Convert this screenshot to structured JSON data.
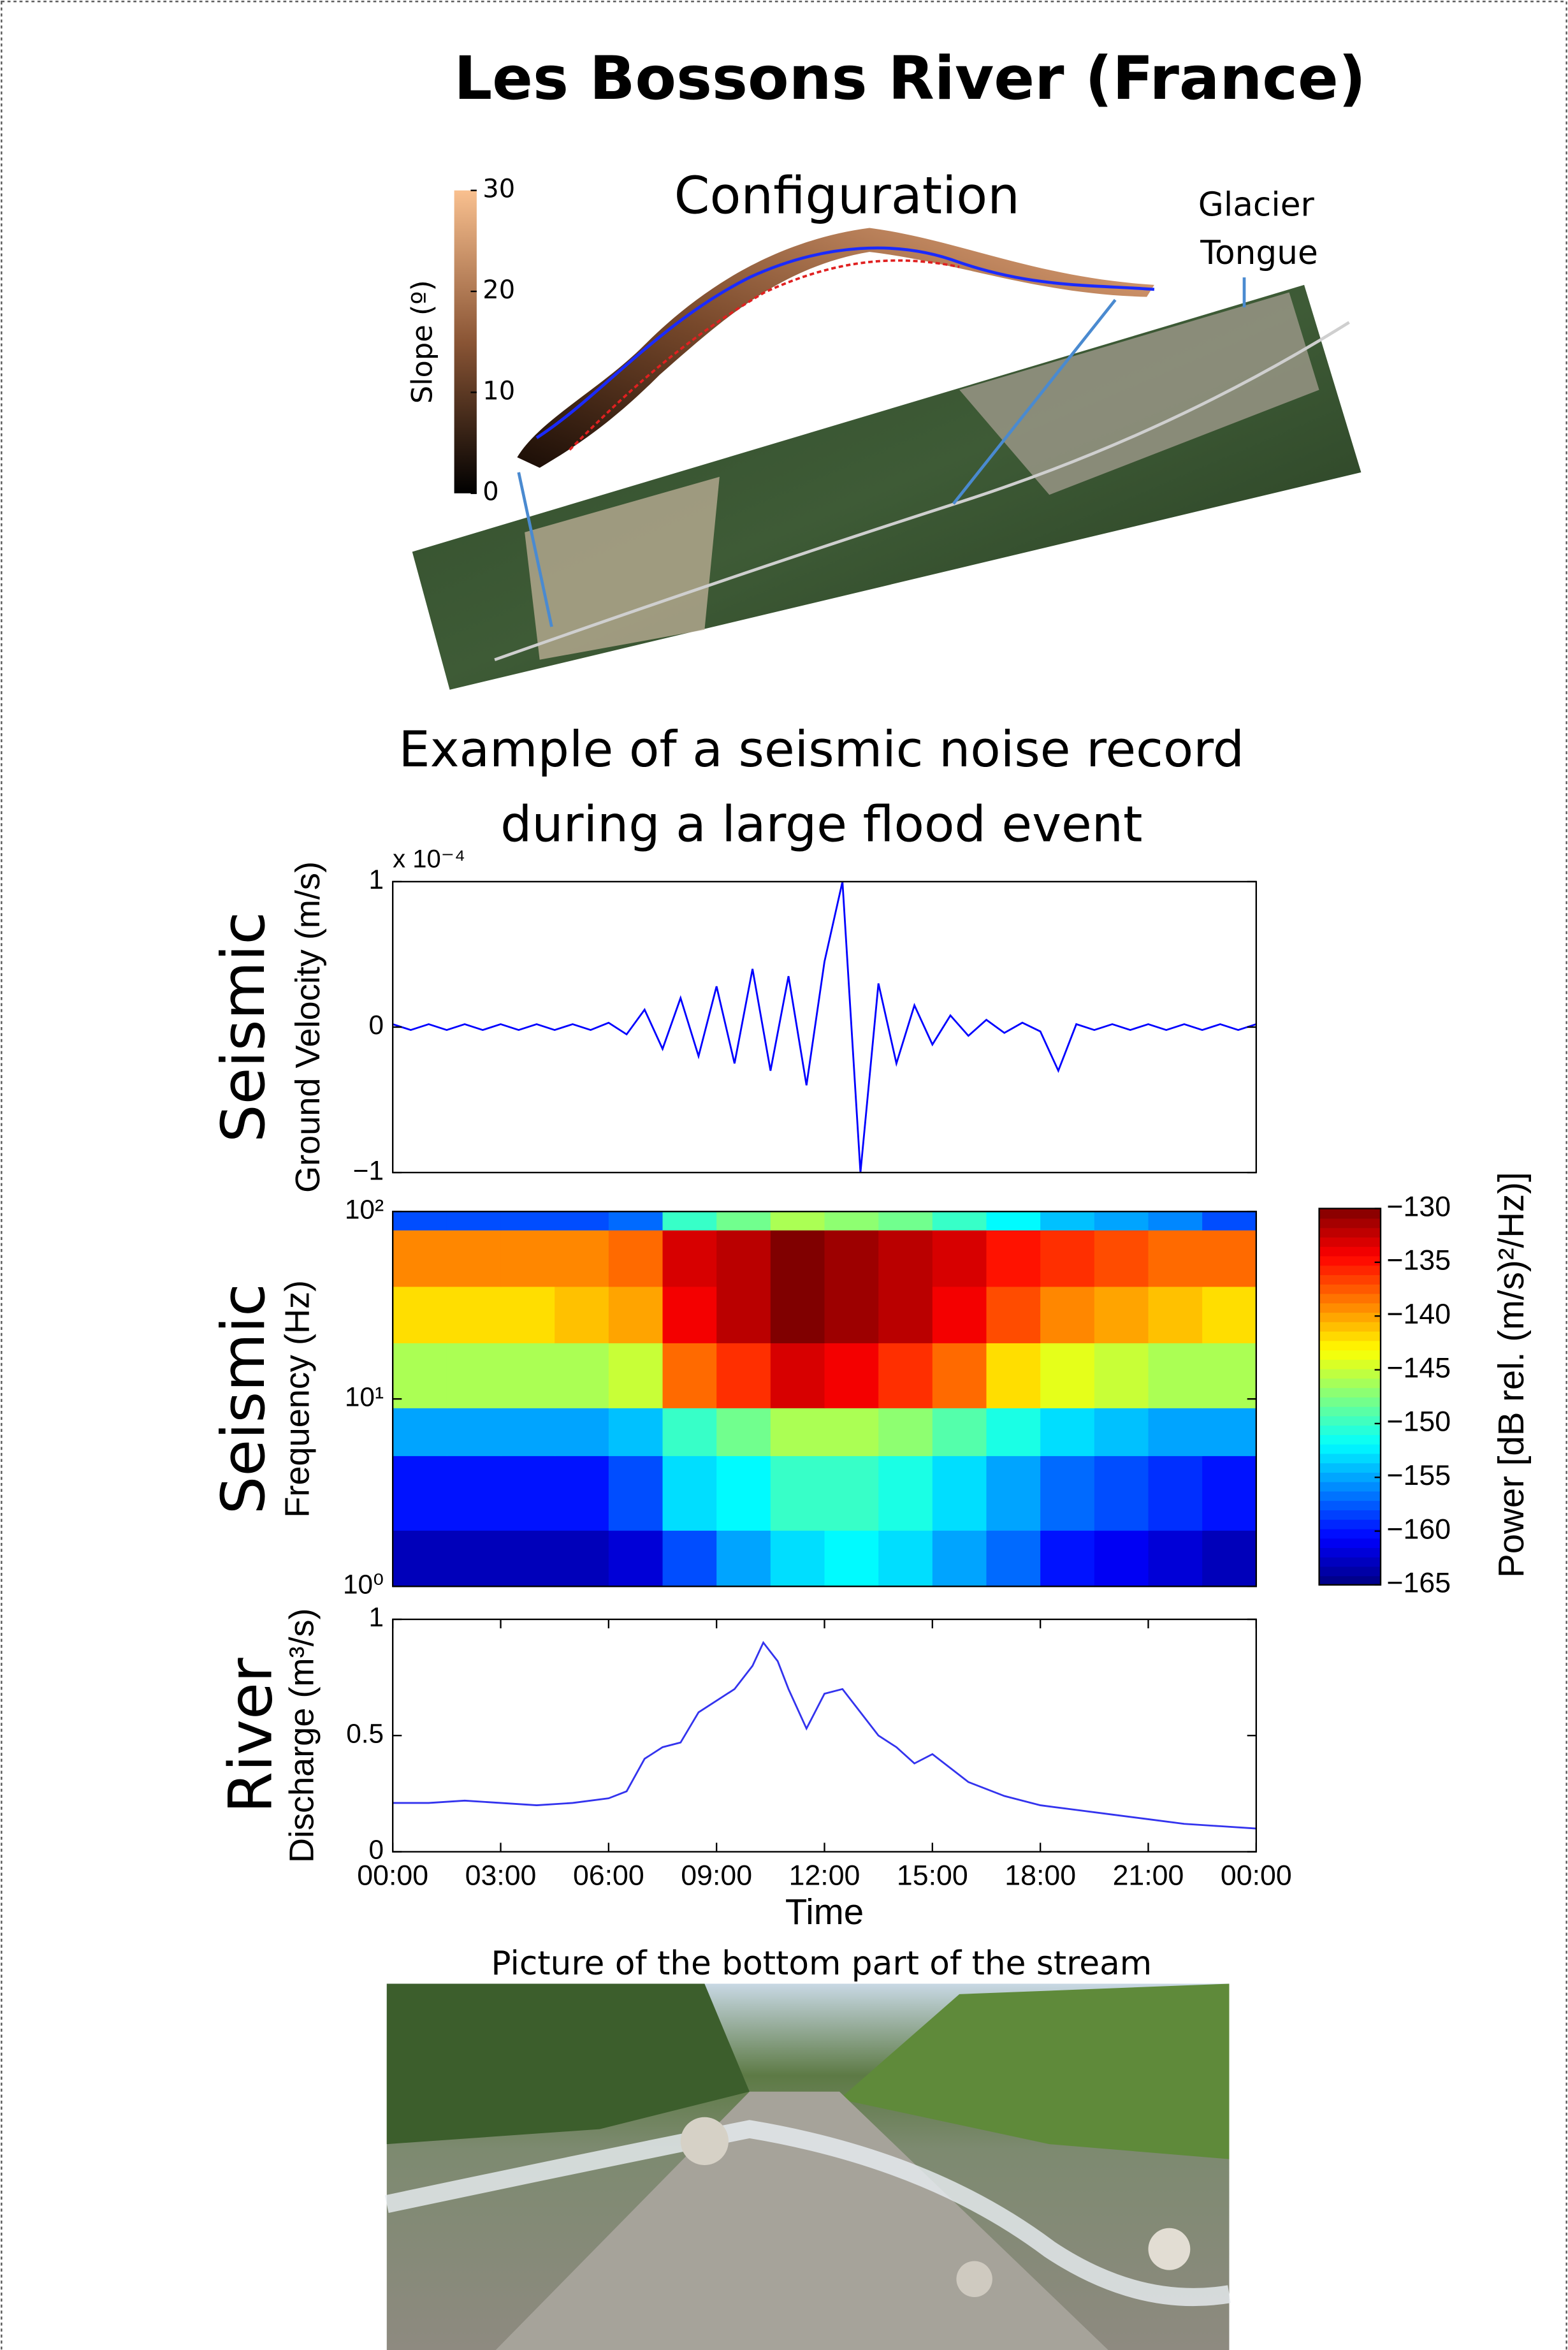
{
  "header": {
    "title": "Les Bossons River (France)"
  },
  "configuration": {
    "title": "Configuration",
    "colorbar_label": "Slope (º)",
    "colorbar_lim": [
      0,
      30
    ],
    "colorbar_ticks": [
      0,
      10,
      20,
      30
    ],
    "annotation_lines": [
      "Glacier",
      "Tongue"
    ]
  },
  "example": {
    "title_lines": [
      "Example of a seismic noise record",
      "during a large flood event"
    ]
  },
  "chart_data": [
    {
      "type": "line",
      "side_label": "Seismic",
      "ylabel": "Ground Velocity (m/s)",
      "multiplier": "x 10⁻⁴",
      "color": "#0000ff",
      "xlim": [
        0,
        24
      ],
      "ylim": [
        -1,
        1
      ],
      "yticks": [
        {
          "value": -1,
          "label": "−1"
        },
        0,
        1
      ],
      "x": [
        0,
        0.5,
        1,
        1.5,
        2,
        2.5,
        3,
        3.5,
        4,
        4.5,
        5,
        5.5,
        6,
        6.5,
        7,
        7.5,
        8,
        8.5,
        9,
        9.5,
        10,
        10.5,
        11,
        11.5,
        12,
        12.5,
        13,
        13.5,
        14,
        14.5,
        15,
        15.5,
        16,
        16.5,
        17,
        17.5,
        18,
        18.5,
        19,
        19.5,
        20,
        20.5,
        21,
        21.5,
        22,
        22.5,
        23,
        23.5,
        24
      ],
      "values": [
        0.02,
        -0.02,
        0.02,
        -0.02,
        0.02,
        -0.02,
        0.02,
        -0.02,
        0.02,
        -0.02,
        0.02,
        -0.02,
        0.03,
        -0.05,
        0.12,
        -0.15,
        0.2,
        -0.2,
        0.28,
        -0.25,
        0.4,
        -0.3,
        0.35,
        -0.4,
        0.45,
        1,
        -1,
        0.3,
        -0.25,
        0.15,
        -0.12,
        0.08,
        -0.06,
        0.05,
        -0.04,
        0.03,
        -0.03,
        -0.3,
        0.02,
        -0.02,
        0.02,
        -0.02,
        0.02,
        -0.02,
        0.02,
        -0.02,
        0.02,
        -0.02,
        0.02
      ]
    },
    {
      "type": "heatmap",
      "side_label": "Seismic",
      "ylabel": "Frequency (Hz)",
      "log_y": true,
      "xlim": [
        0,
        24
      ],
      "ylim": [
        1,
        100
      ],
      "yticks": [
        {
          "value": 1,
          "label": "10⁰"
        },
        {
          "value": 10,
          "label": "10¹"
        },
        {
          "value": 100,
          "label": "10²"
        }
      ],
      "xbins": [
        0,
        1.5,
        3,
        4.5,
        6,
        7.5,
        9,
        10.5,
        12,
        13.5,
        15,
        16.5,
        18,
        19.5,
        21,
        22.5,
        24
      ],
      "ybins": [
        1,
        2,
        5,
        9,
        20,
        40,
        80,
        100
      ],
      "values": [
        [
          -163,
          -163,
          -163,
          -163,
          -162,
          -158,
          -155,
          -153,
          -152,
          -153,
          -155,
          -157,
          -160,
          -161,
          -162,
          -163
        ],
        [
          -160,
          -160,
          -160,
          -160,
          -158,
          -153,
          -152,
          -150,
          -150,
          -151,
          -153,
          -155,
          -157,
          -158,
          -159,
          -160
        ],
        [
          -155,
          -155,
          -155,
          -155,
          -154,
          -150,
          -148,
          -146,
          -146,
          -147,
          -149,
          -151,
          -153,
          -154,
          -155,
          -155
        ],
        [
          -146,
          -146,
          -146,
          -146,
          -145,
          -138,
          -136,
          -133,
          -134,
          -136,
          -138,
          -142,
          -144,
          -145,
          -146,
          -146
        ],
        [
          -142,
          -142,
          -142,
          -141,
          -140,
          -134,
          -132,
          -130,
          -131,
          -132,
          -134,
          -137,
          -139,
          -140,
          -141,
          -142
        ],
        [
          -139,
          -139,
          -139,
          -139,
          -138,
          -133,
          -132,
          -130,
          -131,
          -132,
          -133,
          -135,
          -136,
          -137,
          -138,
          -138
        ],
        [
          -158,
          -158,
          -158,
          -158,
          -157,
          -150,
          -148,
          -146,
          -147,
          -148,
          -150,
          -152,
          -154,
          -155,
          -156,
          -158
        ]
      ],
      "colormap": "jet",
      "zlim": [
        -165,
        -130
      ],
      "zticks": [
        {
          "value": -130,
          "label": "−130"
        },
        {
          "value": -135,
          "label": "−135"
        },
        {
          "value": -140,
          "label": "−140"
        },
        {
          "value": -145,
          "label": "−145"
        },
        {
          "value": -150,
          "label": "−150"
        },
        {
          "value": -155,
          "label": "−155"
        },
        {
          "value": -160,
          "label": "−160"
        },
        {
          "value": -165,
          "label": "−165"
        }
      ],
      "zlabel": "Power [dB rel. (m/s)²/Hz)]"
    },
    {
      "type": "line",
      "side_label": "River",
      "ylabel": "Discharge (m³/s)",
      "xlabel": "Time",
      "color": "#3333ee",
      "xlim": [
        0,
        24
      ],
      "xticks": [
        {
          "value": 0,
          "label": "00:00"
        },
        {
          "value": 3,
          "label": "03:00"
        },
        {
          "value": 6,
          "label": "06:00"
        },
        {
          "value": 9,
          "label": "09:00"
        },
        {
          "value": 12,
          "label": "12:00"
        },
        {
          "value": 15,
          "label": "15:00"
        },
        {
          "value": 18,
          "label": "18:00"
        },
        {
          "value": 21,
          "label": "21:00"
        },
        {
          "value": 24,
          "label": "00:00"
        }
      ],
      "ylim": [
        0,
        1
      ],
      "yticks": [
        0,
        0.5,
        1
      ],
      "x": [
        0,
        1,
        2,
        3,
        4,
        5,
        6,
        6.5,
        7,
        7.5,
        8,
        8.5,
        9,
        9.5,
        10,
        10.3,
        10.7,
        11,
        11.5,
        12,
        12.5,
        13,
        13.5,
        14,
        14.5,
        15,
        15.5,
        16,
        17,
        18,
        19,
        20,
        21,
        22,
        23,
        24
      ],
      "values": [
        0.21,
        0.21,
        0.22,
        0.21,
        0.2,
        0.21,
        0.23,
        0.26,
        0.4,
        0.45,
        0.47,
        0.6,
        0.65,
        0.7,
        0.8,
        0.9,
        0.82,
        0.7,
        0.53,
        0.68,
        0.7,
        0.6,
        0.5,
        0.45,
        0.38,
        0.42,
        0.36,
        0.3,
        0.24,
        0.2,
        0.18,
        0.16,
        0.14,
        0.12,
        0.11,
        0.1
      ]
    }
  ],
  "photo": {
    "caption": "Picture of the bottom part of the stream"
  }
}
